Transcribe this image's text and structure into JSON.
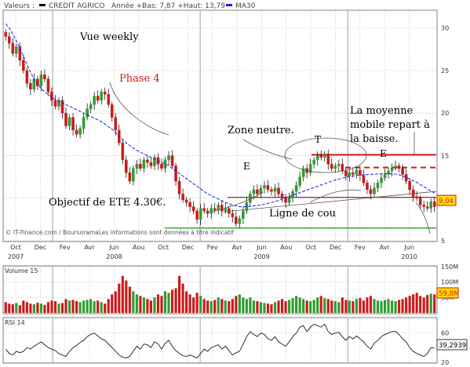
{
  "header": {
    "label_valeurs": "Valeurs :",
    "stock_name": "CREDIT AGRICO",
    "stats": "Année +Bas: 7,87 +Haut: 13,79",
    "ma_label": "MA30"
  },
  "colors": {
    "up": "#2e9e2e",
    "down": "#cc1a1a",
    "ma": "#1a1ae6",
    "annotation_red": "#cc1a1a",
    "neckline": "#993333",
    "support": "#33aa33",
    "price_badge": "#ffdd00",
    "grid": "#b4b4b4",
    "panel_border": "#808080"
  },
  "annotations": {
    "vue_weekly": "Vue weekly",
    "phase4": "Phase 4",
    "zone_neutre": "Zone neutre.",
    "e_left": "E",
    "t_head": "T",
    "e_right": "E",
    "moyenne_line1": "La moyenne",
    "moyenne_line2": "mobile repart à",
    "moyenne_line3": "la baisse.",
    "objectif": "Objectif de ETE 4.30€.",
    "ligne_cou": "Ligne de cou"
  },
  "copyright": "© IT-Finance.com / BoursoramaLes informations sont données à titre indicatif",
  "price_badge": "9,04",
  "volume_label": "Volume 15",
  "volume_badge": "59,8M",
  "rsi_label": "RSI 14",
  "rsi_badge": "39,2939",
  "chart_data": [
    {
      "type": "candlestick",
      "name": "price",
      "title": "CREDIT AGRICO",
      "ylim": [
        5,
        32
      ],
      "y_ticks": [
        5,
        10,
        15,
        20,
        25,
        30
      ],
      "x_range": [
        2007.67,
        2010.6
      ],
      "x_month_ticks": [
        {
          "x": 2007.75,
          "label": "Oct"
        },
        {
          "x": 2007.917,
          "label": "Dec"
        },
        {
          "x": 2008.083,
          "label": "Fev"
        },
        {
          "x": 2008.25,
          "label": "Avr"
        },
        {
          "x": 2008.417,
          "label": "Jun"
        },
        {
          "x": 2008.583,
          "label": "Aou"
        },
        {
          "x": 2008.75,
          "label": "Oct"
        },
        {
          "x": 2008.917,
          "label": "Dec"
        },
        {
          "x": 2009.083,
          "label": "Fev"
        },
        {
          "x": 2009.25,
          "label": "Avr"
        },
        {
          "x": 2009.417,
          "label": "Jun"
        },
        {
          "x": 2009.583,
          "label": "Aou"
        },
        {
          "x": 2009.75,
          "label": "Oct"
        },
        {
          "x": 2009.917,
          "label": "Dec"
        },
        {
          "x": 2010.083,
          "label": "Fev"
        },
        {
          "x": 2010.25,
          "label": "Avr"
        },
        {
          "x": 2010.417,
          "label": "Jun"
        }
      ],
      "x_year_ticks": [
        {
          "x": 2007.75,
          "label": "2007"
        },
        {
          "x": 2008.417,
          "label": "2008"
        },
        {
          "x": 2009.417,
          "label": "2009"
        },
        {
          "x": 2010.417,
          "label": "2010"
        }
      ],
      "year_separators": [
        2008.0,
        2009.0,
        2010.0
      ],
      "close": [
        29.0,
        28.2,
        27.0,
        27.8,
        26.2,
        25.0,
        23.5,
        22.8,
        24.0,
        23.2,
        24.5,
        24.0,
        22.5,
        21.5,
        20.8,
        21.5,
        20.0,
        18.5,
        19.5,
        18.0,
        17.5,
        18.2,
        19.5,
        20.5,
        21.0,
        22.0,
        21.5,
        22.5,
        22.2,
        21.0,
        19.5,
        18.0,
        16.5,
        14.5,
        13.0,
        12.0,
        13.5,
        14.0,
        13.5,
        14.5,
        14.2,
        13.8,
        14.8,
        14.0,
        13.5,
        14.5,
        15.0,
        13.8,
        12.0,
        10.5,
        9.8,
        9.5,
        9.0,
        8.5,
        7.5,
        8.8,
        8.5,
        8.2,
        8.8,
        8.6,
        9.2,
        8.5,
        8.8,
        8.2,
        7.8,
        7.0,
        7.6,
        8.5,
        9.5,
        10.5,
        11.0,
        10.5,
        11.2,
        11.5,
        11.0,
        10.8,
        11.2,
        10.5,
        10.0,
        9.5,
        10.0,
        10.8,
        11.5,
        12.5,
        13.5,
        13.0,
        14.0,
        14.5,
        15.0,
        14.8,
        15.2,
        14.0,
        13.5,
        13.8,
        14.0,
        13.2,
        12.6,
        13.0,
        12.8,
        13.3,
        12.7,
        11.8,
        11.0,
        10.5,
        11.2,
        11.8,
        12.4,
        12.8,
        13.2,
        13.6,
        13.8,
        13.5,
        12.8,
        12.0,
        11.0,
        10.2,
        10.0,
        9.2,
        9.0,
        8.8,
        9.6,
        9.0
      ],
      "ma30": [
        30.5,
        30.0,
        29.3,
        28.5,
        27.6,
        26.7,
        25.7,
        24.8,
        24.0,
        23.4,
        22.9,
        22.5,
        22.2,
        21.9,
        21.6,
        21.4,
        21.2,
        21.0,
        20.8,
        20.6,
        20.4,
        20.2,
        20.0,
        19.8,
        19.6,
        19.4,
        19.2,
        19.0,
        18.7,
        18.4,
        18.1,
        17.7,
        17.3,
        16.9,
        16.5,
        16.2,
        15.9,
        15.6,
        15.4,
        15.2,
        15.0,
        14.8,
        14.6,
        14.4,
        14.2,
        14.0,
        13.8,
        13.5,
        13.2,
        12.9,
        12.6,
        12.3,
        12.0,
        11.7,
        11.4,
        11.1,
        10.8,
        10.5,
        10.3,
        10.1,
        9.9,
        9.7,
        9.5,
        9.35,
        9.2,
        9.1,
        9.0,
        9.0,
        9.0,
        9.05,
        9.1,
        9.15,
        9.2,
        9.3,
        9.4,
        9.5,
        9.6,
        9.75,
        9.9,
        10.05,
        10.2,
        10.35,
        10.5,
        10.65,
        10.8,
        10.95,
        11.1,
        11.25,
        11.4,
        11.55,
        11.7,
        11.85,
        12.0,
        12.15,
        12.25,
        12.35,
        12.45,
        12.55,
        12.62,
        12.68,
        12.72,
        12.75,
        12.78,
        12.8,
        12.82,
        12.84,
        12.86,
        12.88,
        12.88,
        12.86,
        12.82,
        12.75,
        12.62,
        12.45,
        12.25,
        12.05,
        11.85,
        11.6,
        11.35,
        11.1,
        10.85,
        10.6
      ],
      "lines": {
        "shoulder_top": 15.1,
        "dashed_resistance": 13.6,
        "support": 6.5
      },
      "last_price": 9.04
    },
    {
      "type": "bar",
      "name": "Volume 15",
      "ylim": [
        0,
        150000000
      ],
      "y_ticks": [
        {
          "value": 50000000,
          "label": "50M"
        },
        {
          "value": 100000000,
          "label": "100M"
        },
        {
          "value": 150000000,
          "label": "150M"
        }
      ],
      "values_M": [
        35,
        30,
        28,
        32,
        25,
        40,
        35,
        30,
        28,
        33,
        30,
        26,
        35,
        40,
        38,
        30,
        32,
        45,
        40,
        42,
        38,
        35,
        40,
        42,
        45,
        38,
        40,
        35,
        30,
        45,
        60,
        70,
        95,
        120,
        105,
        85,
        70,
        60,
        55,
        50,
        45,
        40,
        50,
        60,
        55,
        70,
        65,
        75,
        80,
        120,
        95,
        70,
        60,
        50,
        65,
        55,
        45,
        40,
        38,
        42,
        50,
        45,
        40,
        38,
        45,
        55,
        60,
        50,
        45,
        50,
        40,
        38,
        35,
        32,
        30,
        28,
        35,
        40,
        45,
        38,
        42,
        48,
        55,
        50,
        45,
        40,
        38,
        42,
        50,
        55,
        48,
        45,
        40,
        38,
        35,
        50,
        42,
        40,
        38,
        45,
        48,
        40,
        50,
        55,
        45,
        40,
        38,
        42,
        45,
        40,
        38,
        42,
        45,
        50,
        55,
        60,
        65,
        55,
        50,
        58,
        62,
        60
      ],
      "last_value": "59,8M"
    },
    {
      "type": "line",
      "name": "RSI 14",
      "ylim": [
        20,
        80
      ],
      "y_ticks": [
        20,
        60
      ],
      "values": [
        38,
        32,
        30,
        35,
        33,
        35,
        40,
        38,
        42,
        45,
        48,
        44,
        40,
        38,
        36,
        32,
        30,
        28,
        35,
        40,
        43,
        47,
        50,
        55,
        58,
        60,
        56,
        52,
        50,
        45,
        40,
        35,
        30,
        27,
        26,
        28,
        35,
        42,
        38,
        45,
        44,
        40,
        48,
        45,
        38,
        46,
        50,
        42,
        36,
        32,
        29,
        28,
        30,
        28,
        26,
        32,
        38,
        35,
        40,
        42,
        44,
        38,
        42,
        36,
        30,
        33,
        35,
        45,
        55,
        62,
        58,
        55,
        60,
        58,
        52,
        50,
        55,
        48,
        45,
        42,
        48,
        55,
        60,
        68,
        70,
        62,
        68,
        72,
        70,
        68,
        72,
        62,
        58,
        60,
        61,
        55,
        50,
        55,
        52,
        56,
        52,
        48,
        42,
        38,
        46,
        50,
        55,
        58,
        60,
        62,
        62,
        58,
        52,
        48,
        40,
        35,
        32,
        30,
        28,
        32,
        40,
        39.29
      ],
      "last_value": "39,2939"
    }
  ]
}
